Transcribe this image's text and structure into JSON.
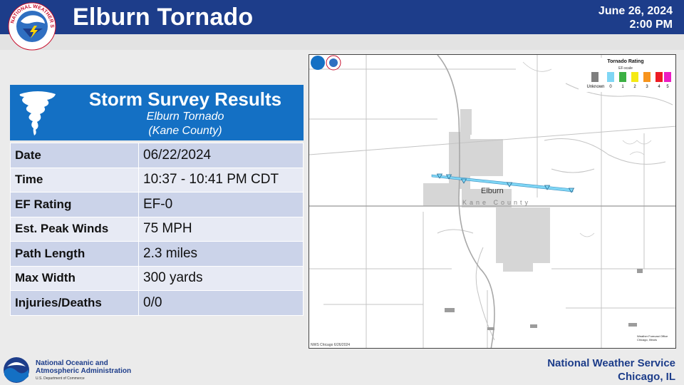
{
  "header": {
    "title": "Elburn Tornado",
    "date": "June 26, 2024",
    "time": "2:00 PM",
    "logo": "nws-logo",
    "logo_text": "NATIONAL WEATHER SERVICE"
  },
  "survey": {
    "title": "Storm Survey Results",
    "subtitle": "Elburn Tornado",
    "subtitle2": "(Kane County)",
    "icon": "tornado-icon",
    "rows": [
      {
        "label": "Date",
        "value": "06/22/2024"
      },
      {
        "label": "Time",
        "value": "10:37 - 10:41 PM CDT"
      },
      {
        "label": "EF Rating",
        "value": "EF-0"
      },
      {
        "label": "Est. Peak Winds",
        "value": "75 MPH"
      },
      {
        "label": "Path Length",
        "value": "2.3 miles"
      },
      {
        "label": "Max Width",
        "value": "300 yards"
      },
      {
        "label": "Injuries/Deaths",
        "value": "0/0"
      }
    ]
  },
  "map": {
    "town": "Elburn",
    "county": "Kane County",
    "credit": "NWS Chicago 6/26/2024",
    "office_text_1": "Weather Forecast Office",
    "office_text_2": "Chicago, Illinois",
    "legend": {
      "title": "Tornado Rating",
      "subtitle": "EF-scale",
      "items": [
        {
          "label": "Unknown",
          "color": "#7f7f7f"
        },
        {
          "label": "0",
          "color": "#7fd6f5"
        },
        {
          "label": "1",
          "color": "#3cb043"
        },
        {
          "label": "2",
          "color": "#f5ea14"
        },
        {
          "label": "3",
          "color": "#f7941d"
        },
        {
          "label": "4",
          "color": "#ed1c24"
        },
        {
          "label": "5",
          "color": "#ec1cc3"
        }
      ]
    }
  },
  "footer": {
    "noaa_line1": "National Oceanic and",
    "noaa_line2": "Atmospheric Administration",
    "noaa_line3": "U.S. Department of Commerce",
    "nws_line1": "National Weather Service",
    "nws_line2": "Chicago, IL"
  },
  "colors": {
    "header": "#1d3d8a",
    "survey_header": "#1470c4",
    "row_dark": "#cbd3e9",
    "row_light": "#e7eaf4",
    "track": "#7fd6f5"
  }
}
